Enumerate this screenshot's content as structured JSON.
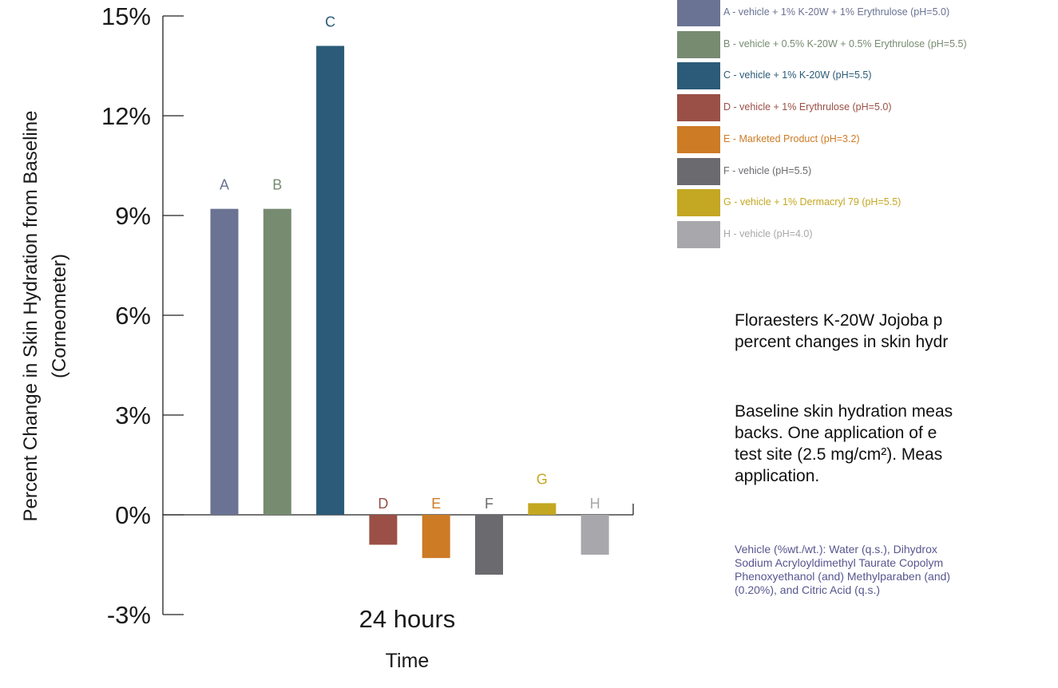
{
  "chart_data": {
    "type": "bar",
    "ylabel": "Percent Change in Skin Hydration from Baseline",
    "ylabel2": "(Corneometer)",
    "xlabel": "Time",
    "x_category": "24 hours",
    "ylim": [
      -3,
      15
    ],
    "yticks": [
      15,
      12,
      9,
      6,
      3,
      0,
      -3
    ],
    "ytick_labels": [
      "15%",
      "12%",
      "9%",
      "6%",
      "3%",
      "0%",
      "-3%"
    ],
    "grid": false,
    "categories": [
      "A",
      "B",
      "C",
      "D",
      "E",
      "F",
      "G",
      "H"
    ],
    "values": [
      9.2,
      9.2,
      14.1,
      -0.9,
      -1.3,
      -1.8,
      0.35,
      -1.2
    ],
    "colors": [
      "#6a7393",
      "#778b71",
      "#2b5b78",
      "#9a5046",
      "#cd7b25",
      "#6b6b6f",
      "#c4a722",
      "#a8a8ac"
    ],
    "legend_position": "top-right",
    "legend": [
      "A - vehicle + 1% K-20W + 1% Erythrulose (pH=5.0)",
      "B - vehicle + 0.5% K-20W + 0.5% Erythrulose (pH=5.5)",
      "C - vehicle + 1% K-20W (pH=5.5)",
      "D - vehicle + 1% Erythrulose (pH=5.0)",
      "E - Marketed Product (pH=3.2)",
      "F - vehicle (pH=5.5)",
      "G - vehicle + 1% Dermacryl 79 (pH=5.5)",
      "H - vehicle (pH=4.0)"
    ]
  },
  "caption": {
    "paragraph1": "Floraesters K-20W Jojoba p\npercent changes in skin hydr",
    "paragraph2": "Baseline skin hydration meas\nbacks.  One application of e\ntest site (2.5 mg/cm²).  Meas\napplication.",
    "vehicle": "Vehicle (%wt./wt.): Water (q.s.), Dihydrox\nSodium Acryloyldimethyl Taurate Copolym\nPhenoxyethanol (and) Methylparaben (and)\n(0.20%), and Citric Acid (q.s.)"
  }
}
